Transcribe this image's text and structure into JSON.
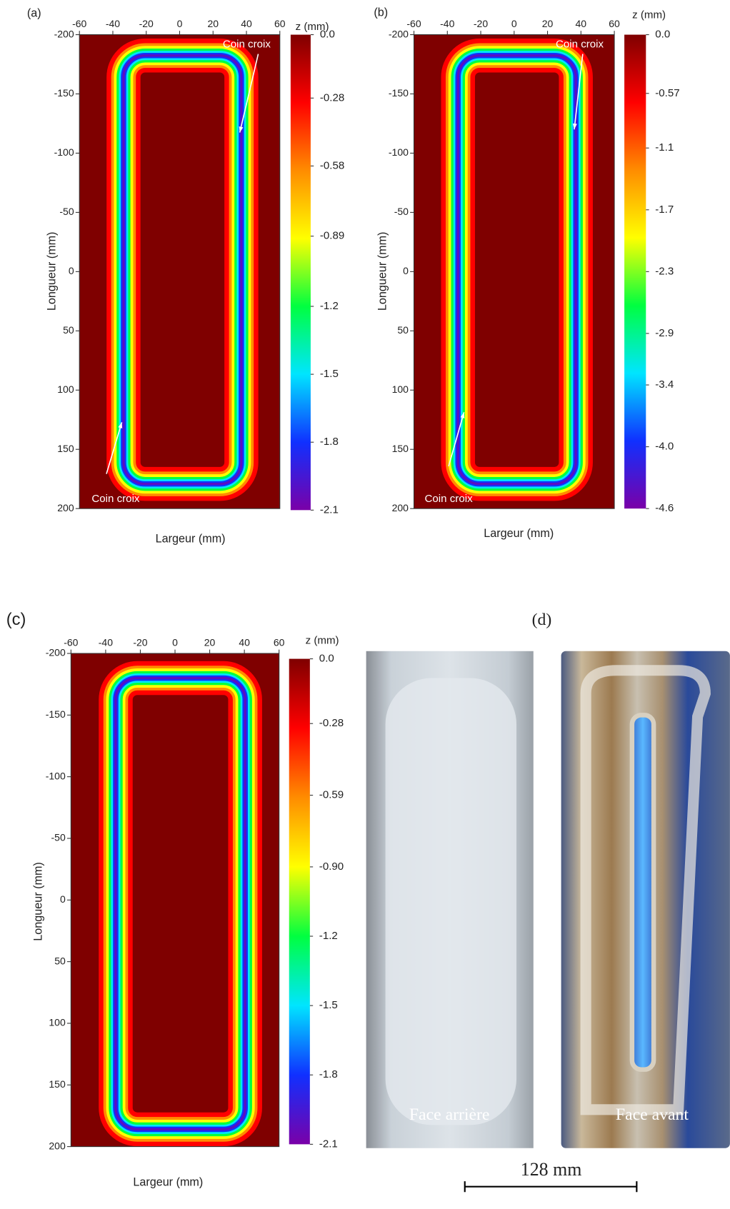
{
  "chart_data": [
    {
      "type": "heatmap",
      "panel_label": "(a)",
      "xlabel": "Largeur (mm)",
      "ylabel": "Longueur (mm)",
      "xlim": [
        -60,
        60
      ],
      "xticks": [
        -60,
        -40,
        -20,
        0,
        20,
        40,
        60
      ],
      "ylim": [
        -200,
        200
      ],
      "yticks": [
        -200,
        -150,
        -100,
        -50,
        0,
        50,
        100,
        150,
        200
      ],
      "zlabel": "z (mm)",
      "zlim": [
        -2.1,
        0
      ],
      "zticks": [
        {
          "value": 0,
          "label": "0.0"
        },
        -0.28,
        -0.58,
        -0.89,
        -1.2,
        -1.5,
        -1.8,
        -2.1
      ],
      "colormap": [
        "#7f0000",
        "#ff0000",
        "#ff8c00",
        "#ffff00",
        "#00ff40",
        "#00e5ff",
        "#1030ff",
        "#7a00a8"
      ],
      "annotations": [
        "Coin croix",
        "Coin croix"
      ]
    },
    {
      "type": "heatmap",
      "panel_label": "(b)",
      "xlabel": "Largeur (mm)",
      "ylabel": "Longueur (mm)",
      "xlim": [
        -60,
        60
      ],
      "xticks": [
        -60,
        -40,
        -20,
        0,
        20,
        40,
        60
      ],
      "ylim": [
        -200,
        200
      ],
      "yticks": [
        -200,
        -150,
        -100,
        -50,
        0,
        50,
        100,
        150,
        200
      ],
      "zlabel": "z (mm)",
      "zlim": [
        -4.6,
        0
      ],
      "zticks": [
        {
          "value": 0,
          "label": "0.0"
        },
        -0.57,
        -1.1,
        -1.7,
        -2.3,
        -2.9,
        -3.4,
        {
          "value": -4,
          "label": "-4.0"
        },
        -4.6
      ],
      "colormap": [
        "#7f0000",
        "#ff0000",
        "#ff8c00",
        "#ffff00",
        "#00ff40",
        "#00e5ff",
        "#1030ff",
        "#7a00a8"
      ],
      "annotations": [
        "Coin croix",
        "Coin croix"
      ]
    },
    {
      "type": "heatmap",
      "panel_label": "(c)",
      "xlabel": "Largeur (mm)",
      "ylabel": "Longueur (mm)",
      "xlim": [
        -60,
        60
      ],
      "xticks": [
        -60,
        -40,
        -20,
        0,
        20,
        40,
        60
      ],
      "ylim": [
        -200,
        200
      ],
      "yticks": [
        -200,
        -150,
        -100,
        -50,
        0,
        50,
        100,
        150,
        200
      ],
      "zlabel": "z (mm)",
      "zlim": [
        -2.1,
        0
      ],
      "zticks": [
        {
          "value": 0,
          "label": "0.0"
        },
        -0.28,
        -0.59,
        {
          "value": -0.9,
          "label": "-0.90"
        },
        -1.2,
        -1.5,
        -1.8,
        -2.1
      ],
      "colormap": [
        "#7f0000",
        "#ff0000",
        "#ff8c00",
        "#ffff00",
        "#00ff40",
        "#00e5ff",
        "#1030ff",
        "#7a00a8"
      ],
      "annotations": []
    }
  ],
  "photos": {
    "panel_label": "(d)",
    "captions": [
      "Face arrière",
      "Face avant"
    ],
    "scale_bar": "128 mm"
  }
}
